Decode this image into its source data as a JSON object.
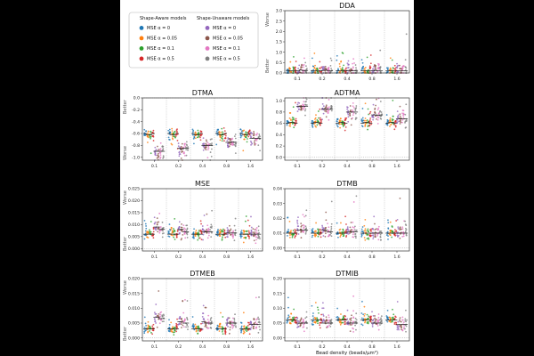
{
  "legend": {
    "aware_title": "Shape-Aware models",
    "unaware_title": "Shape-Unaware models",
    "aware_items": [
      {
        "label": "MSE α = 0",
        "color": "#1f77b4"
      },
      {
        "label": "MSE α = 0.05",
        "color": "#ff7f0e"
      },
      {
        "label": "MSE α = 0.1",
        "color": "#2ca02c"
      },
      {
        "label": "MSE α = 0.5",
        "color": "#d62728"
      }
    ],
    "unaware_items": [
      {
        "label": "MSE α = 0",
        "color": "#9467bd"
      },
      {
        "label": "MSE α = 0.05",
        "color": "#8c564b"
      },
      {
        "label": "MSE α = 0.1",
        "color": "#e377c2"
      },
      {
        "label": "MSE α = 0.5",
        "color": "#7f7f7f"
      }
    ]
  },
  "better_label": "Better",
  "worse_label": "Worse",
  "xlabel": "Bead density (beads/μm²)",
  "chart_data": [
    {
      "type": "scatter",
      "title": "DDA",
      "categories": [
        "0.1",
        "0.2",
        "0.4",
        "0.8",
        "1.6"
      ],
      "yticks": [
        "0.0",
        "0.5",
        "1.0",
        "1.5",
        "2.0",
        "2.5",
        "3.0"
      ],
      "ylim": [
        0,
        3.0
      ],
      "top_label": "Worse",
      "bottom_label": "Better",
      "series_medians": [
        [
          0.12,
          0.1,
          0.1,
          0.1,
          0.1,
          0.15,
          0.1,
          0.12
        ],
        [
          0.1,
          0.1,
          0.1,
          0.1,
          0.12,
          0.14,
          0.1,
          0.1
        ],
        [
          0.1,
          0.1,
          0.1,
          0.1,
          0.12,
          0.12,
          0.1,
          0.1
        ],
        [
          0.1,
          0.1,
          0.1,
          0.1,
          0.1,
          0.12,
          0.1,
          0.1
        ],
        [
          0.1,
          0.1,
          0.1,
          0.1,
          0.1,
          0.1,
          0.1,
          0.1
        ]
      ]
    },
    {
      "type": "scatter",
      "title": "DTMA",
      "categories": [
        "0.1",
        "0.2",
        "0.4",
        "0.8",
        "1.6"
      ],
      "yticks": [
        "0.0",
        "-0.2",
        "-0.4",
        "-0.6",
        "-0.8",
        "-1.0"
      ],
      "ylim": [
        -1.05,
        0.0
      ],
      "top_label": "Better",
      "bottom_label": "Worse",
      "series_medians": [
        [
          -0.6,
          -0.62,
          -0.62,
          -0.6,
          -0.9,
          -0.9,
          -0.9,
          -0.9
        ],
        [
          -0.6,
          -0.62,
          -0.62,
          -0.6,
          -0.85,
          -0.86,
          -0.85,
          -0.85
        ],
        [
          -0.6,
          -0.62,
          -0.62,
          -0.6,
          -0.8,
          -0.8,
          -0.8,
          -0.8
        ],
        [
          -0.6,
          -0.62,
          -0.62,
          -0.6,
          -0.75,
          -0.75,
          -0.74,
          -0.75
        ],
        [
          -0.6,
          -0.62,
          -0.62,
          -0.6,
          -0.68,
          -0.68,
          -0.68,
          -0.68
        ]
      ]
    },
    {
      "type": "scatter",
      "title": "ADTMA",
      "categories": [
        "0.1",
        "0.2",
        "0.4",
        "0.8",
        "1.6"
      ],
      "yticks": [
        "0.0",
        "0.2",
        "0.4",
        "0.6",
        "0.8",
        "1.0"
      ],
      "ylim": [
        -0.05,
        1.05
      ],
      "top_label": "",
      "bottom_label": "",
      "series_medians": [
        [
          0.6,
          0.62,
          0.62,
          0.6,
          0.9,
          0.9,
          0.9,
          0.9
        ],
        [
          0.6,
          0.62,
          0.62,
          0.6,
          0.85,
          0.86,
          0.85,
          0.85
        ],
        [
          0.6,
          0.62,
          0.62,
          0.6,
          0.8,
          0.8,
          0.8,
          0.8
        ],
        [
          0.6,
          0.62,
          0.62,
          0.6,
          0.75,
          0.75,
          0.74,
          0.75
        ],
        [
          0.6,
          0.62,
          0.62,
          0.6,
          0.68,
          0.68,
          0.68,
          0.68
        ]
      ]
    },
    {
      "type": "scatter",
      "title": "MSE",
      "categories": [
        "0.1",
        "0.2",
        "0.4",
        "0.8",
        "1.6"
      ],
      "yticks": [
        "0.000",
        "0.005",
        "0.010",
        "0.015",
        "0.020",
        "0.025"
      ],
      "ylim": [
        -0.001,
        0.025
      ],
      "top_label": "Worse",
      "bottom_label": "Better",
      "series_medians": [
        [
          0.006,
          0.006,
          0.006,
          0.006,
          0.009,
          0.009,
          0.008,
          0.008
        ],
        [
          0.006,
          0.006,
          0.006,
          0.006,
          0.008,
          0.008,
          0.007,
          0.007
        ],
        [
          0.006,
          0.006,
          0.006,
          0.006,
          0.007,
          0.007,
          0.007,
          0.007
        ],
        [
          0.006,
          0.006,
          0.006,
          0.006,
          0.0065,
          0.0065,
          0.0065,
          0.0065
        ],
        [
          0.006,
          0.006,
          0.006,
          0.006,
          0.006,
          0.006,
          0.006,
          0.006
        ]
      ]
    },
    {
      "type": "scatter",
      "title": "DTMB",
      "categories": [
        "0.1",
        "0.2",
        "0.4",
        "0.8",
        "1.6"
      ],
      "yticks": [
        "0.00",
        "0.01",
        "0.02",
        "0.03",
        "0.04"
      ],
      "ylim": [
        -0.002,
        0.04
      ],
      "top_label": "",
      "bottom_label": "",
      "series_medians": [
        [
          0.01,
          0.01,
          0.01,
          0.01,
          0.012,
          0.012,
          0.012,
          0.012
        ],
        [
          0.01,
          0.01,
          0.01,
          0.01,
          0.012,
          0.012,
          0.011,
          0.011
        ],
        [
          0.01,
          0.01,
          0.01,
          0.01,
          0.011,
          0.011,
          0.011,
          0.011
        ],
        [
          0.01,
          0.01,
          0.01,
          0.01,
          0.01,
          0.01,
          0.01,
          0.01
        ],
        [
          0.01,
          0.01,
          0.01,
          0.01,
          0.01,
          0.01,
          0.01,
          0.01
        ]
      ]
    },
    {
      "type": "scatter",
      "title": "DTMEB",
      "categories": [
        "0.1",
        "0.2",
        "0.4",
        "0.8",
        "1.6"
      ],
      "yticks": [
        "0.000",
        "0.005",
        "0.010",
        "0.015",
        "0.020"
      ],
      "ylim": [
        -0.001,
        0.02
      ],
      "top_label": "Worse",
      "bottom_label": "Better",
      "series_medians": [
        [
          0.003,
          0.003,
          0.003,
          0.003,
          0.007,
          0.007,
          0.0065,
          0.0065
        ],
        [
          0.003,
          0.003,
          0.003,
          0.003,
          0.0055,
          0.0055,
          0.005,
          0.005
        ],
        [
          0.003,
          0.003,
          0.003,
          0.003,
          0.0055,
          0.005,
          0.005,
          0.005
        ],
        [
          0.003,
          0.003,
          0.003,
          0.003,
          0.005,
          0.005,
          0.005,
          0.005
        ],
        [
          0.003,
          0.003,
          0.003,
          0.003,
          0.0045,
          0.0045,
          0.0045,
          0.0045
        ]
      ]
    },
    {
      "type": "scatter",
      "title": "DTMIB",
      "categories": [
        "0.1",
        "0.2",
        "0.4",
        "0.8",
        "1.6"
      ],
      "yticks": [
        "0.00",
        "0.05",
        "0.10",
        "0.15",
        "0.20"
      ],
      "ylim": [
        -0.01,
        0.2
      ],
      "top_label": "",
      "bottom_label": "",
      "series_medians": [
        [
          0.06,
          0.06,
          0.06,
          0.06,
          0.05,
          0.05,
          0.05,
          0.05
        ],
        [
          0.06,
          0.06,
          0.06,
          0.06,
          0.05,
          0.05,
          0.05,
          0.05
        ],
        [
          0.06,
          0.06,
          0.06,
          0.06,
          0.05,
          0.05,
          0.05,
          0.05
        ],
        [
          0.06,
          0.06,
          0.06,
          0.06,
          0.05,
          0.05,
          0.05,
          0.05
        ],
        [
          0.06,
          0.06,
          0.06,
          0.06,
          0.045,
          0.045,
          0.045,
          0.045
        ]
      ]
    }
  ]
}
